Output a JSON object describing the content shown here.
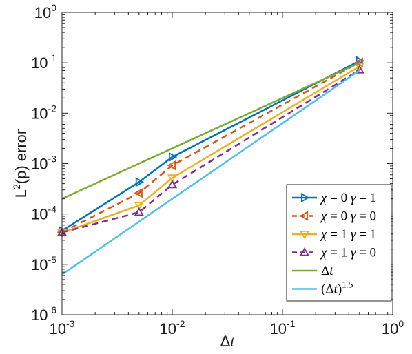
{
  "chart_data": {
    "type": "line",
    "x_scale": "log",
    "y_scale": "log",
    "xlim": [
      0.001,
      1
    ],
    "ylim": [
      1e-06,
      1
    ],
    "xlabel": "Δt",
    "ylabel": "L2(p) error",
    "ylabel_parts": {
      "before": "L",
      "sup": "2",
      "after": "(p) error"
    },
    "xlabel_parts": {
      "prefix": "Δ",
      "var": "t"
    },
    "x_ticks": [
      {
        "value": 0.001,
        "base": "10",
        "exp": "-3"
      },
      {
        "value": 0.01,
        "base": "10",
        "exp": "-2"
      },
      {
        "value": 0.1,
        "base": "10",
        "exp": "-1"
      },
      {
        "value": 1,
        "base": "10",
        "exp": "0"
      }
    ],
    "y_ticks": [
      {
        "value": 1,
        "base": "10",
        "exp": "0"
      },
      {
        "value": 0.1,
        "base": "10",
        "exp": "-1"
      },
      {
        "value": 0.01,
        "base": "10",
        "exp": "-2"
      },
      {
        "value": 0.001,
        "base": "10",
        "exp": "-3"
      },
      {
        "value": 0.0001,
        "base": "10",
        "exp": "-4"
      },
      {
        "value": 1e-05,
        "base": "10",
        "exp": "-5"
      },
      {
        "value": 1e-06,
        "base": "10",
        "exp": "-6"
      }
    ],
    "grid": false,
    "legend_position": "bottom-right",
    "series": [
      {
        "name": "χ = 0 γ = 1",
        "legend": {
          "chi": "0",
          "gamma": "1"
        },
        "color": "#0072BD",
        "dash": "solid",
        "marker": "triangle-right",
        "x": [
          0.001,
          0.005,
          0.01,
          0.5
        ],
        "y": [
          4.65e-05,
          0.00043,
          0.00135,
          0.109
        ]
      },
      {
        "name": "χ = 0 γ = 0",
        "legend": {
          "chi": "0",
          "gamma": "0"
        },
        "color": "#D95319",
        "dash": "dashed",
        "marker": "triangle-left",
        "x": [
          0.001,
          0.005,
          0.01,
          0.5
        ],
        "y": [
          4.35e-05,
          0.00026,
          0.00092,
          0.102
        ]
      },
      {
        "name": "χ = 1 γ = 1",
        "legend": {
          "chi": "1",
          "gamma": "1"
        },
        "color": "#EDB120",
        "dash": "solid",
        "marker": "triangle-down",
        "x": [
          0.001,
          0.005,
          0.01,
          0.5
        ],
        "y": [
          4.25e-05,
          0.000148,
          0.00052,
          0.085
        ]
      },
      {
        "name": "χ = 1 γ = 0",
        "legend": {
          "chi": "1",
          "gamma": "0"
        },
        "color": "#7E2F8E",
        "dash": "dashed",
        "marker": "triangle-up",
        "x": [
          0.001,
          0.005,
          0.01,
          0.5
        ],
        "y": [
          4.3e-05,
          0.000108,
          0.00038,
          0.072
        ]
      },
      {
        "name": "Δt",
        "color": "#77AC30",
        "dash": "solid",
        "marker": "none",
        "x": [
          0.001,
          0.5
        ],
        "y": [
          0.0002,
          0.1
        ]
      },
      {
        "name": "(Δt)^1.5",
        "legend_parts": {
          "base": "(Δ",
          "var": "t",
          "close": ")",
          "exp": "1.5"
        },
        "color": "#4DBEEE",
        "dash": "solid",
        "marker": "none",
        "x": [
          0.001,
          0.5
        ],
        "y": [
          6.3e-06,
          0.0707
        ]
      }
    ]
  }
}
